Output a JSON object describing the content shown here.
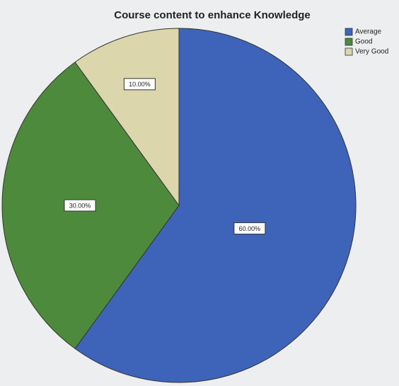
{
  "chart_data": {
    "type": "pie",
    "title": "Course content to enhance Knowledge",
    "categories": [
      "Average",
      "Good",
      "Very Good"
    ],
    "values": [
      60,
      30,
      10
    ],
    "value_labels": [
      "60.00%",
      "30.00%",
      "10.00%"
    ],
    "colors": [
      "#3d64b8",
      "#4e8a3b",
      "#dcd6ac"
    ],
    "legend": "top-right"
  }
}
